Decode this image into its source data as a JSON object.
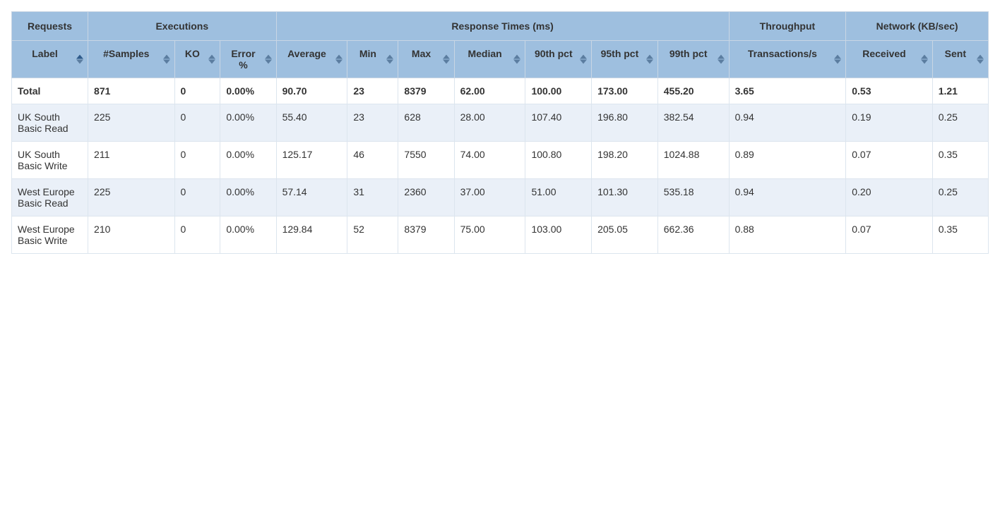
{
  "groups": {
    "requests": "Requests",
    "executions": "Executions",
    "response_times": "Response Times (ms)",
    "throughput": "Throughput",
    "network": "Network (KB/sec)"
  },
  "columns": {
    "label": "Label",
    "samples": "#Samples",
    "ko": "KO",
    "error": "Error %",
    "average": "Average",
    "min": "Min",
    "max": "Max",
    "median": "Median",
    "p90": "90th pct",
    "p95": "95th pct",
    "p99": "99th pct",
    "tps": "Transactions/s",
    "received": "Received",
    "sent": "Sent"
  },
  "rows": [
    {
      "label": "Total",
      "samples": "871",
      "ko": "0",
      "error": "0.00%",
      "average": "90.70",
      "min": "23",
      "max": "8379",
      "median": "62.00",
      "p90": "100.00",
      "p95": "173.00",
      "p99": "455.20",
      "tps": "3.65",
      "received": "0.53",
      "sent": "1.21",
      "is_total": true
    },
    {
      "label": "UK South Basic Read",
      "samples": "225",
      "ko": "0",
      "error": "0.00%",
      "average": "55.40",
      "min": "23",
      "max": "628",
      "median": "28.00",
      "p90": "107.40",
      "p95": "196.80",
      "p99": "382.54",
      "tps": "0.94",
      "received": "0.19",
      "sent": "0.25",
      "is_total": false
    },
    {
      "label": "UK South Basic Write",
      "samples": "211",
      "ko": "0",
      "error": "0.00%",
      "average": "125.17",
      "min": "46",
      "max": "7550",
      "median": "74.00",
      "p90": "100.80",
      "p95": "198.20",
      "p99": "1024.88",
      "tps": "0.89",
      "received": "0.07",
      "sent": "0.35",
      "is_total": false
    },
    {
      "label": "West Europe Basic Read",
      "samples": "225",
      "ko": "0",
      "error": "0.00%",
      "average": "57.14",
      "min": "31",
      "max": "2360",
      "median": "37.00",
      "p90": "51.00",
      "p95": "101.30",
      "p99": "535.18",
      "tps": "0.94",
      "received": "0.20",
      "sent": "0.25",
      "is_total": false
    },
    {
      "label": "West Europe Basic Write",
      "samples": "210",
      "ko": "0",
      "error": "0.00%",
      "average": "129.84",
      "min": "52",
      "max": "8379",
      "median": "75.00",
      "p90": "103.00",
      "p95": "205.05",
      "p99": "662.36",
      "tps": "0.88",
      "received": "0.07",
      "sent": "0.35",
      "is_total": false
    }
  ],
  "style": {
    "header_bg": "#9ebfdf",
    "row_alt_bg": "#eaf0f8",
    "border_color": "#dce5ee",
    "sort_arrow_color": "#2e5a8a",
    "sort_arrow_active": "#2e5a8a",
    "label_sorted_asc": true
  }
}
